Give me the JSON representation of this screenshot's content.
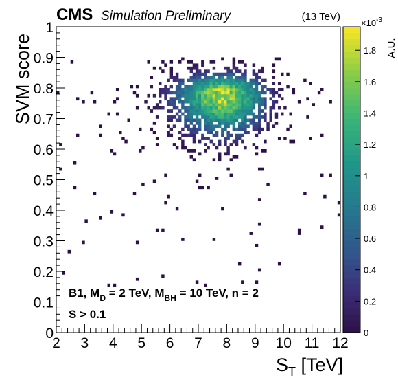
{
  "header": {
    "experiment": "CMS",
    "status": "Simulation Preliminary",
    "energy": "(13 TeV)"
  },
  "annotations": {
    "line1_prefix": "B1, M",
    "line1_sub1": "D",
    "line1_mid": " = 2 TeV, M",
    "line1_sub2": "BH",
    "line1_suffix": " = 10 TeV, n = 2",
    "line2": "S > 0.1"
  },
  "chart_data": {
    "type": "heatmap",
    "title": "",
    "xlabel": "S",
    "xlabel_sub": "T",
    "xlabel_unit": " [TeV]",
    "ylabel": "SVM score",
    "zlabel": "A.U.",
    "zscale_exponent": "×10",
    "zscale_power": "-3",
    "xlim": [
      2,
      12
    ],
    "ylim": [
      0,
      1
    ],
    "zlim": [
      0,
      0.00195
    ],
    "xticks": [
      "2",
      "3",
      "4",
      "5",
      "6",
      "7",
      "8",
      "9",
      "10",
      "11",
      "12"
    ],
    "yticks": [
      "0",
      "0.1",
      "0.2",
      "0.3",
      "0.4",
      "0.5",
      "0.6",
      "0.7",
      "0.8",
      "0.9",
      "1"
    ],
    "zticks": [
      "0",
      "0.2",
      "0.4",
      "0.6",
      "0.8",
      "1",
      "1.2",
      "1.4",
      "1.6",
      "1.8"
    ],
    "bins": {
      "x_count": 100,
      "y_count": 100
    },
    "distribution": {
      "peak_x": 7.9,
      "peak_y": 0.78,
      "peak_value": 0.00195,
      "core_x_range": [
        5.5,
        10.0
      ],
      "core_y_range": [
        0.55,
        0.9
      ],
      "sparse_y_min": 0.15
    },
    "grid": false,
    "colormap": "viridis"
  }
}
